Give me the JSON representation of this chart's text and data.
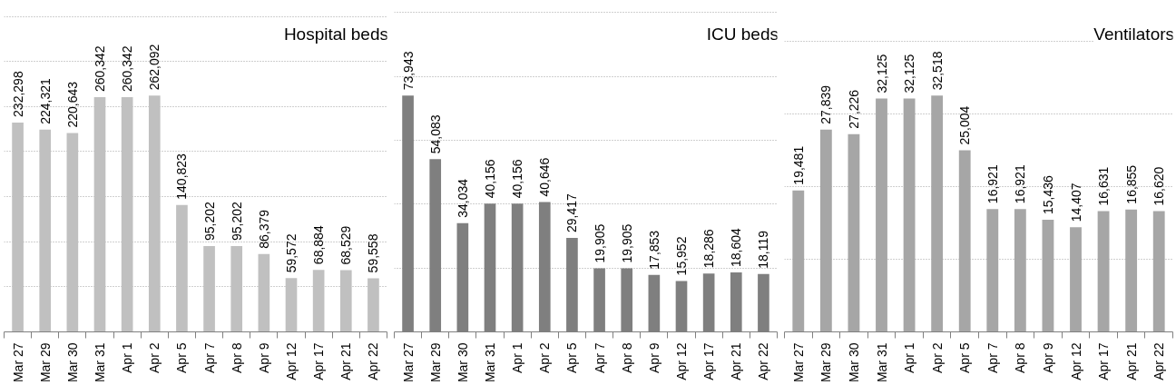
{
  "chart_data": [
    {
      "type": "bar",
      "title": "Hospital beds",
      "categories": [
        "Mar 27",
        "Mar 29",
        "Mar 30",
        "Mar 31",
        "Apr 1",
        "Apr 2",
        "Apr 5",
        "Apr 7",
        "Apr 8",
        "Apr 9",
        "Apr 12",
        "Apr 17",
        "Apr 21",
        "Apr 22"
      ],
      "values": [
        232298,
        224321,
        220643,
        260342,
        260342,
        262092,
        140823,
        95202,
        95202,
        86379,
        59572,
        68884,
        68529,
        59558
      ],
      "color": "#c0c0c0",
      "value_labels": [
        "232,298",
        "224,321",
        "220,643",
        "260,342",
        "260,342",
        "262,092",
        "140,823",
        "95,202",
        "95,202",
        "86,379",
        "59,572",
        "68,884",
        "68,529",
        "59,558"
      ],
      "grid": "y",
      "tick_labels": "x"
    },
    {
      "type": "bar",
      "title": "ICU beds",
      "categories": [
        "Mar 27",
        "Mar 29",
        "Mar 30",
        "Mar 31",
        "Apr 1",
        "Apr 2",
        "Apr 5",
        "Apr 7",
        "Apr 8",
        "Apr 9",
        "Apr 12",
        "Apr 17",
        "Apr 21",
        "Apr 22"
      ],
      "values": [
        73943,
        54083,
        34034,
        40156,
        40156,
        40646,
        29417,
        19905,
        19905,
        17853,
        15952,
        18286,
        18604,
        18119
      ],
      "color": "#7f7f7f",
      "value_labels": [
        "73,943",
        "54,083",
        "34,034",
        "40,156",
        "40,156",
        "40,646",
        "29,417",
        "19,905",
        "19,905",
        "17,853",
        "15,952",
        "18,286",
        "18,604",
        "18,119"
      ],
      "grid": "y",
      "tick_labels": "x"
    },
    {
      "type": "bar",
      "title": "Ventilators",
      "categories": [
        "Mar 27",
        "Mar 29",
        "Mar 30",
        "Mar 31",
        "Apr 1",
        "Apr 2",
        "Apr 5",
        "Apr 7",
        "Apr 8",
        "Apr 9",
        "Apr 12",
        "Apr 17",
        "Apr 21",
        "Apr 22"
      ],
      "values": [
        19481,
        27839,
        27226,
        32125,
        32125,
        32518,
        25004,
        16921,
        16921,
        15436,
        14407,
        16631,
        16855,
        16620
      ],
      "color": "#a6a6a6",
      "value_labels": [
        "19,481",
        "27,839",
        "27,226",
        "32,125",
        "32,125",
        "32,518",
        "25,004",
        "16,921",
        "16,921",
        "15,436",
        "14,407",
        "16,631",
        "16,855",
        "16,620"
      ],
      "grid": "y",
      "tick_labels": "x"
    }
  ]
}
